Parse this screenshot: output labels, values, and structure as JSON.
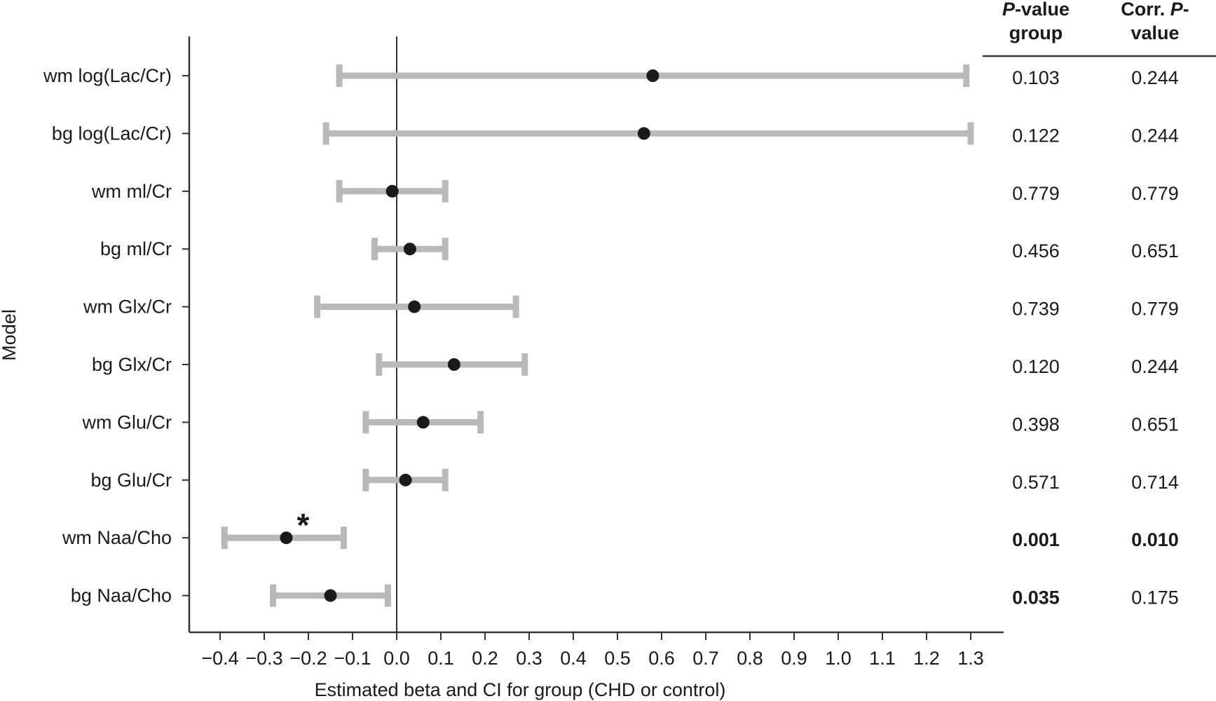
{
  "chart_data": {
    "type": "forest",
    "xlabel": "Estimated beta and CI for group (CHD or control)",
    "ylabel": "Model",
    "xlim": [
      -0.45,
      1.37
    ],
    "xticks": [
      -0.4,
      -0.3,
      -0.2,
      -0.1,
      0.0,
      0.1,
      0.2,
      0.3,
      0.4,
      0.5,
      0.6,
      0.7,
      0.8,
      0.9,
      1.0,
      1.1,
      1.2,
      1.3
    ],
    "xtick_labels": [
      "−0.4",
      "−0.3",
      "−0.2",
      "−0.1",
      "0.0",
      "0.1",
      "0.2",
      "0.3",
      "0.4",
      "0.5",
      "0.6",
      "0.7",
      "0.8",
      "0.9",
      "1.0",
      "1.1",
      "1.2",
      "1.3"
    ],
    "reference_line": 0,
    "column_headers": {
      "p_group": {
        "italic": "P",
        "rest": "-value",
        "line2": "group"
      },
      "corr_p": {
        "line1": "Corr. ",
        "italic": "P",
        "dash": "-",
        "line2": "value"
      }
    },
    "models": [
      {
        "label": "wm log(Lac/Cr)",
        "estimate": 0.58,
        "ci_low": -0.13,
        "ci_high": 1.29,
        "p_group": "0.103",
        "corr_p": "0.244",
        "p_bold": false,
        "corr_bold": false,
        "significant": false
      },
      {
        "label": "bg log(Lac/Cr)",
        "estimate": 0.56,
        "ci_low": -0.16,
        "ci_high": 1.3,
        "p_group": "0.122",
        "corr_p": "0.244",
        "p_bold": false,
        "corr_bold": false,
        "significant": false
      },
      {
        "label": "wm ml/Cr",
        "estimate": -0.01,
        "ci_low": -0.13,
        "ci_high": 0.11,
        "p_group": "0.779",
        "corr_p": "0.779",
        "p_bold": false,
        "corr_bold": false,
        "significant": false
      },
      {
        "label": "bg ml/Cr",
        "estimate": 0.03,
        "ci_low": -0.05,
        "ci_high": 0.11,
        "p_group": "0.456",
        "corr_p": "0.651",
        "p_bold": false,
        "corr_bold": false,
        "significant": false
      },
      {
        "label": "wm Glx/Cr",
        "estimate": 0.04,
        "ci_low": -0.18,
        "ci_high": 0.27,
        "p_group": "0.739",
        "corr_p": "0.779",
        "p_bold": false,
        "corr_bold": false,
        "significant": false
      },
      {
        "label": "bg Glx/Cr",
        "estimate": 0.13,
        "ci_low": -0.04,
        "ci_high": 0.29,
        "p_group": "0.120",
        "corr_p": "0.244",
        "p_bold": false,
        "corr_bold": false,
        "significant": false
      },
      {
        "label": "wm Glu/Cr",
        "estimate": 0.06,
        "ci_low": -0.07,
        "ci_high": 0.19,
        "p_group": "0.398",
        "corr_p": "0.651",
        "p_bold": false,
        "corr_bold": false,
        "significant": false
      },
      {
        "label": "bg Glu/Cr",
        "estimate": 0.02,
        "ci_low": -0.07,
        "ci_high": 0.11,
        "p_group": "0.571",
        "corr_p": "0.714",
        "p_bold": false,
        "corr_bold": false,
        "significant": false
      },
      {
        "label": "wm Naa/Cho",
        "estimate": -0.25,
        "ci_low": -0.39,
        "ci_high": -0.12,
        "p_group": "0.001",
        "corr_p": "0.010",
        "p_bold": true,
        "corr_bold": true,
        "significant": true
      },
      {
        "label": "bg Naa/Cho",
        "estimate": -0.15,
        "ci_low": -0.28,
        "ci_high": -0.02,
        "p_group": "0.035",
        "corr_p": "0.175",
        "p_bold": true,
        "corr_bold": false,
        "significant": false
      }
    ],
    "significance_marker": "*",
    "colors": {
      "ci_bar": "#b9b9b9",
      "point": "#1a1a1a",
      "axis": "#333333"
    }
  }
}
